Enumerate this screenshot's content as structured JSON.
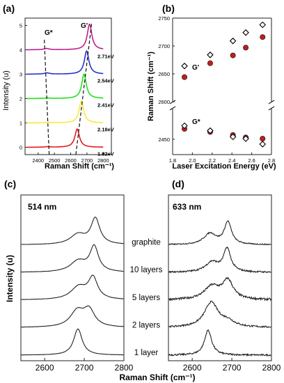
{
  "chart_data": [
    {
      "panel": "(a)",
      "type": "line",
      "xlabel": "Raman Shift (cm⁻¹)",
      "ylabel": "Intensity (u)",
      "xlim": [
        2320,
        2850
      ],
      "ylim": [
        -0.3,
        5.3
      ],
      "xticks": [
        2400,
        2500,
        2600,
        2700,
        2800
      ],
      "yticks": [
        0,
        1,
        2,
        3,
        4,
        5
      ],
      "annotations": [
        "G*",
        "G'"
      ],
      "series": [
        {
          "name": "1.92eV",
          "color": "#e21b1b",
          "offset": 0,
          "peak_x": 2640,
          "peak_height": 0.75,
          "gstar_x": 2458,
          "gstar_height": 0.02
        },
        {
          "name": "2.18eV",
          "color": "#f7ea35",
          "offset": 1,
          "peak_x": 2666,
          "peak_height": 0.9,
          "gstar_x": 2463,
          "gstar_height": 0.02
        },
        {
          "name": "2.41eV",
          "color": "#22e01e",
          "offset": 2,
          "peak_x": 2682,
          "peak_height": 1.0,
          "gstar_x": 2457,
          "gstar_height": 0.02
        },
        {
          "name": "2.54eV",
          "color": "#2434cc",
          "offset": 3,
          "peak_x": 2698,
          "peak_height": 0.95,
          "gstar_x": 2454,
          "gstar_height": 0.05
        },
        {
          "name": "2.71eV",
          "color": "#c0208a",
          "offset": 4,
          "peak_x": 2716,
          "peak_height": 1.05,
          "gstar_x": 2452,
          "gstar_height": 0.05
        }
      ],
      "dashed_guides": [
        {
          "x": [
            2468,
            2438
          ],
          "y": [
            -0.3,
            4.45
          ]
        },
        {
          "x": [
            2632,
            2730
          ],
          "y": [
            -0.3,
            5.15
          ]
        }
      ]
    },
    {
      "panel": "(b)",
      "type": "scatter",
      "xlabel": "Laser Excitation Energy (eV)",
      "ylabel": "Raman Shift (cm⁻¹)",
      "xlim": [
        1.8,
        2.8
      ],
      "xticks": [
        "1.8",
        "2.0",
        "2.2",
        "2.4",
        "2.6",
        "2.8"
      ],
      "y_break": true,
      "ylim_upper": [
        2600,
        2750
      ],
      "ylim_lower": [
        2425,
        2500
      ],
      "yticks_upper": [
        2600,
        2650,
        2700,
        2750
      ],
      "yticks_lower": [
        2450
      ],
      "annotations": [
        "G'",
        "G*"
      ],
      "series": [
        {
          "name": "filled-red",
          "marker": "circle",
          "color": "#cc1a1a",
          "x": [
            1.92,
            2.18,
            2.41,
            2.54,
            2.71
          ],
          "y_upper": [
            2644,
            2669,
            2683,
            2697,
            2716
          ],
          "y_lower": [
            2467,
            2462,
            2457,
            2453,
            2451
          ]
        },
        {
          "name": "open-diamond",
          "marker": "diamond",
          "color": "#000000",
          "x": [
            1.92,
            2.18,
            2.41,
            2.54,
            2.71
          ],
          "y_upper": [
            2664,
            2684,
            2709,
            2724,
            2738
          ],
          "y_lower": [
            2472,
            2464,
            2454,
            2451,
            2442
          ]
        }
      ]
    },
    {
      "panel": "(c)",
      "type": "line",
      "label": "514 nm",
      "ylabel": "Intensity (u)",
      "xlim": [
        2540,
        2800
      ],
      "xticks": [
        2600,
        2700,
        2800
      ],
      "series": [
        {
          "name": "1 layer",
          "offset": 0,
          "peaks": [
            {
              "c": 2684,
              "h": 1.0,
              "w": 26
            }
          ],
          "noise": 0.004
        },
        {
          "name": "2 layers",
          "offset": 1,
          "peaks": [
            {
              "c": 2682,
              "h": 0.6,
              "w": 42
            },
            {
              "c": 2712,
              "h": 0.62,
              "w": 34
            }
          ],
          "noise": 0.004
        },
        {
          "name": "5 layers",
          "offset": 2,
          "peaks": [
            {
              "c": 2686,
              "h": 0.48,
              "w": 48
            },
            {
              "c": 2722,
              "h": 0.8,
              "w": 28
            }
          ],
          "noise": 0.004
        },
        {
          "name": "10 layers",
          "offset": 3,
          "peaks": [
            {
              "c": 2685,
              "h": 0.42,
              "w": 48
            },
            {
              "c": 2725,
              "h": 0.95,
              "w": 26
            }
          ],
          "noise": 0.004
        },
        {
          "name": "graphite",
          "offset": 4,
          "peaks": [
            {
              "c": 2684,
              "h": 0.38,
              "w": 46
            },
            {
              "c": 2728,
              "h": 0.98,
              "w": 27
            }
          ],
          "noise": 0.003
        }
      ]
    },
    {
      "panel": "(d)",
      "type": "line",
      "label": "633 nm",
      "xlim": [
        2540,
        2800
      ],
      "xticks": [
        2600,
        2700,
        2800
      ],
      "series": [
        {
          "name": "1 layer",
          "offset": 0,
          "peaks": [
            {
              "c": 2640,
              "h": 0.95,
              "w": 22
            }
          ],
          "noise": 0.03
        },
        {
          "name": "2 layers",
          "offset": 1,
          "peaks": [
            {
              "c": 2648,
              "h": 0.95,
              "w": 42
            },
            {
              "c": 2690,
              "h": 0.2,
              "w": 40
            }
          ],
          "noise": 0.03
        },
        {
          "name": "5 layers",
          "offset": 2,
          "peaks": [
            {
              "c": 2650,
              "h": 0.5,
              "w": 48
            },
            {
              "c": 2690,
              "h": 0.7,
              "w": 32
            }
          ],
          "noise": 0.04
        },
        {
          "name": "10 layers",
          "offset": 3,
          "peaks": [
            {
              "c": 2650,
              "h": 0.38,
              "w": 40
            },
            {
              "c": 2688,
              "h": 0.88,
              "w": 22
            }
          ],
          "noise": 0.03
        },
        {
          "name": "graphite",
          "offset": 4,
          "peaks": [
            {
              "c": 2645,
              "h": 0.42,
              "w": 38
            },
            {
              "c": 2690,
              "h": 0.85,
              "w": 22
            }
          ],
          "noise": 0.02
        }
      ]
    }
  ],
  "shared": {
    "x_axis_label": "Raman Shift (cm⁻¹)"
  }
}
